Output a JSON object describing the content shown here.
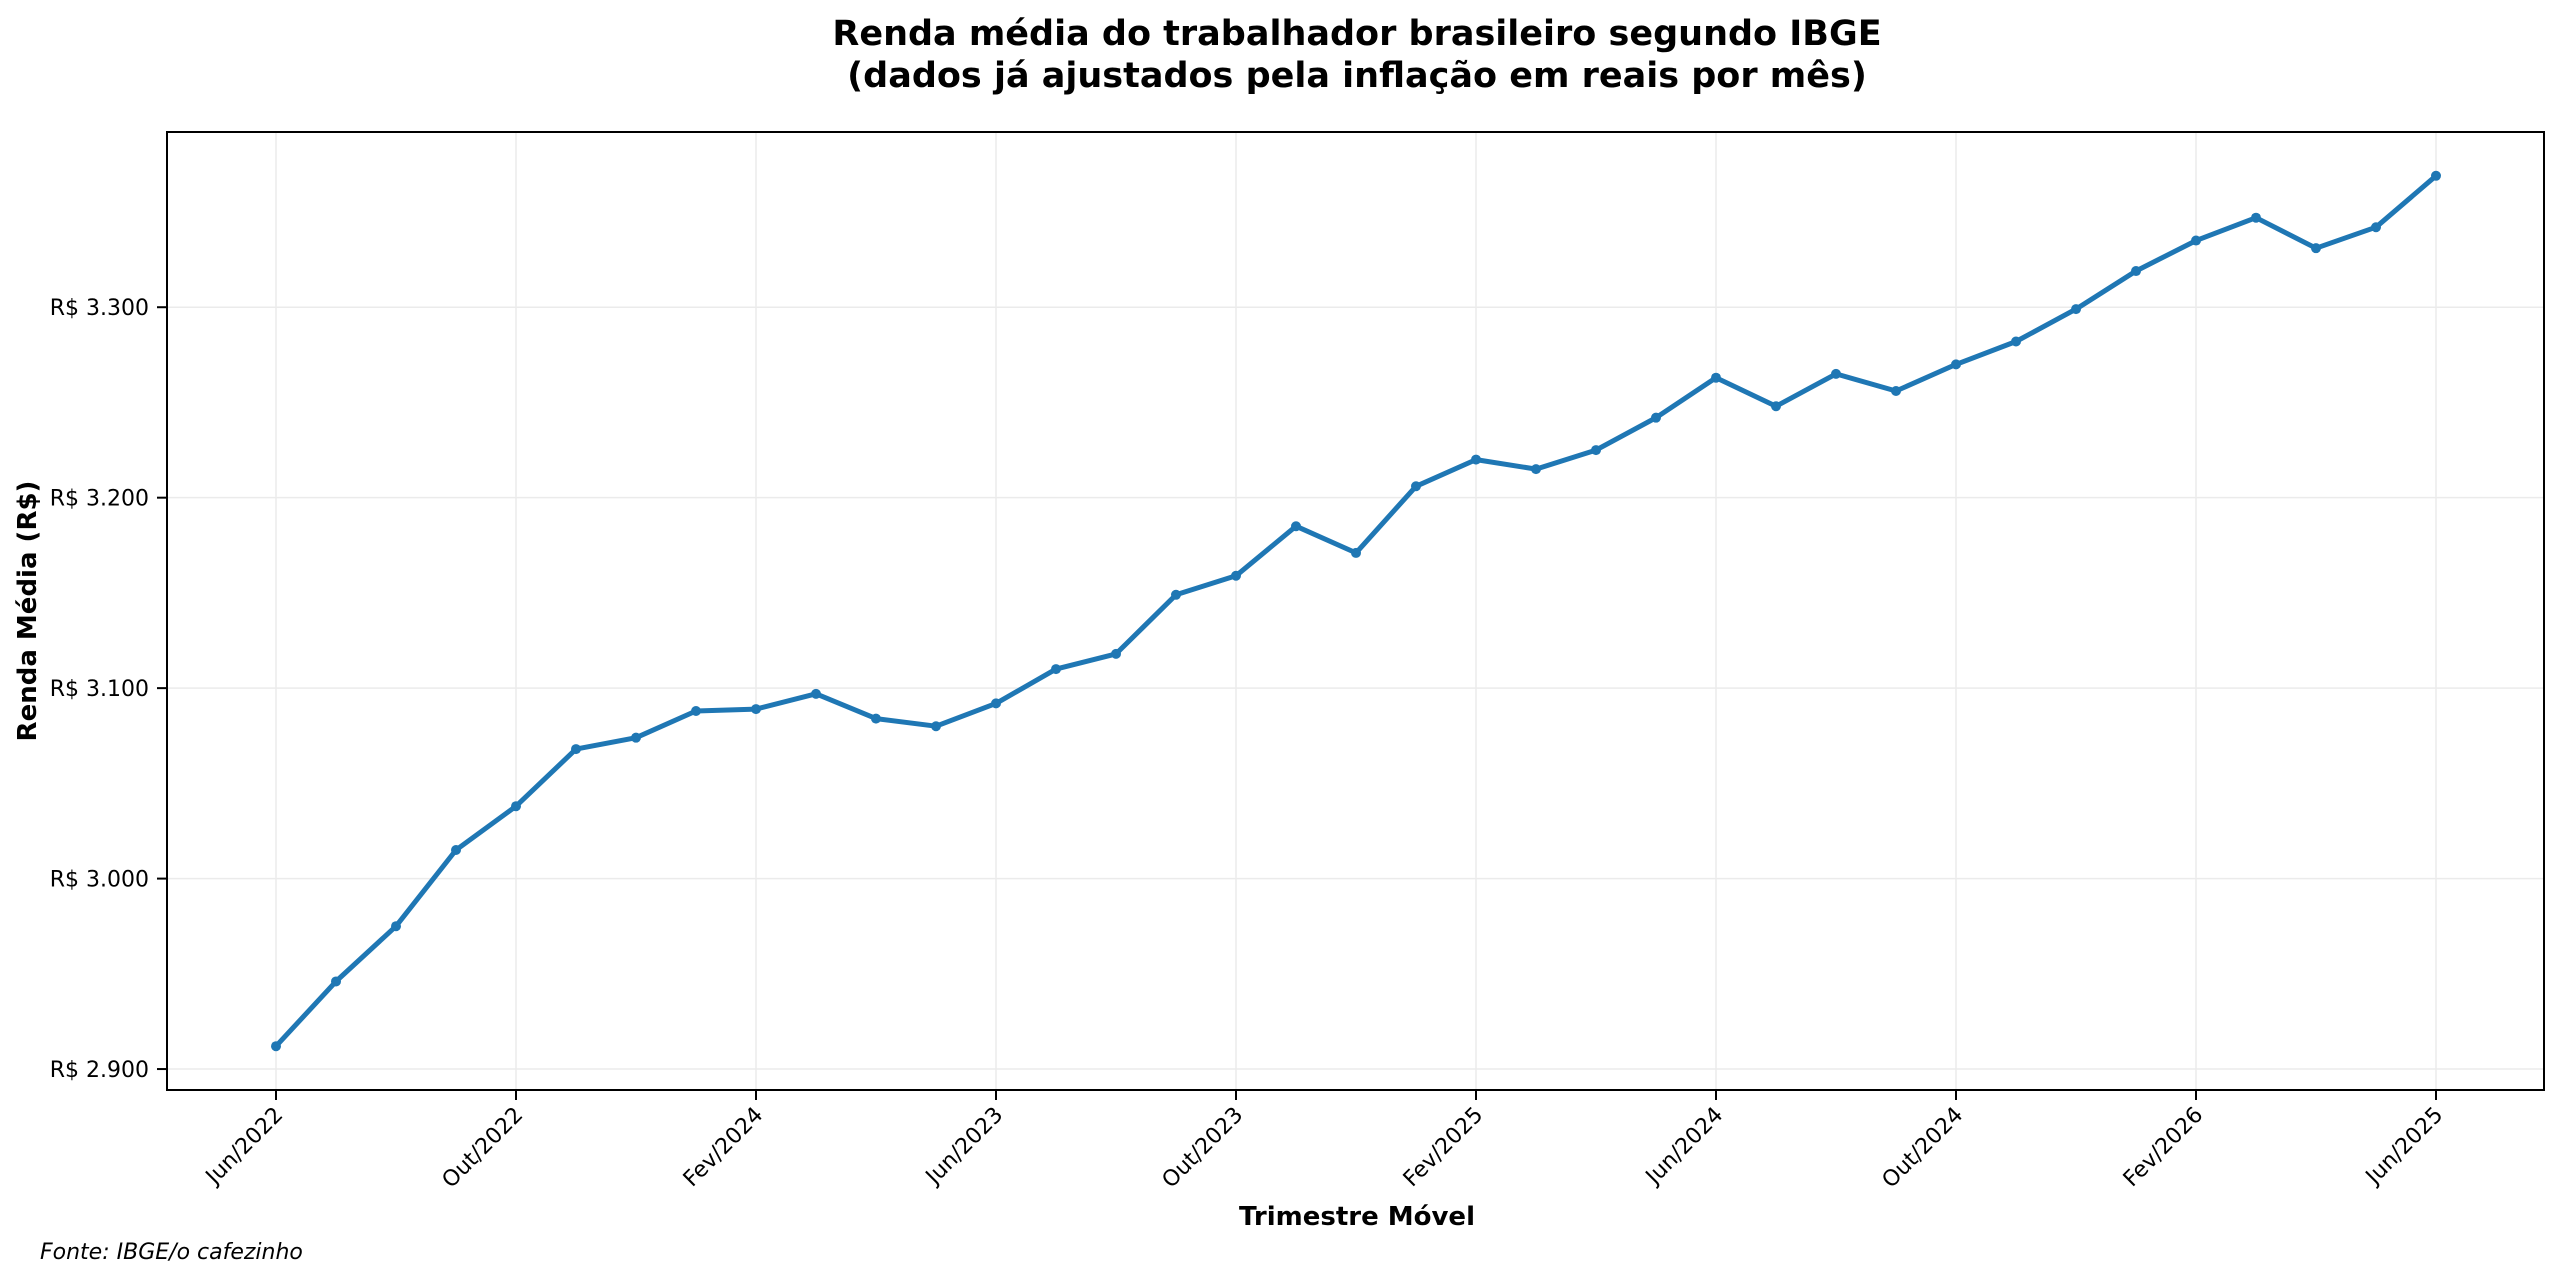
{
  "chart_data": {
    "type": "line",
    "title": "Renda média do trabalhador brasileiro segundo IBGE",
    "subtitle": "(dados já ajustados pela inflação em reais por mês)",
    "xlabel": "Trimestre Móvel",
    "ylabel": "Renda Média (R$)",
    "source": "Fonte: IBGE/o cafezinho",
    "x_tick_labels": [
      "Jun/2022",
      "Out/2022",
      "Fev/2024",
      "Jun/2023",
      "Out/2023",
      "Fev/2025",
      "Jun/2024",
      "Out/2024",
      "Fev/2026",
      "Jun/2025"
    ],
    "x_tick_every": 4,
    "y_ticks": [
      2900,
      3000,
      3100,
      3200,
      3300
    ],
    "y_tick_labels": [
      "R$ 2.900",
      "R$ 3.000",
      "R$ 3.100",
      "R$ 3.200",
      "R$ 3.300"
    ],
    "ylim": [
      2889,
      3392
    ],
    "grid": true,
    "line_color": "#1f77b4",
    "grid_color": "#ebebeb",
    "series": [
      {
        "values": [
          2912,
          2946,
          2975,
          3015,
          3038,
          3068,
          3074,
          3088,
          3089,
          3097,
          3084,
          3080,
          3092,
          3110,
          3118,
          3149,
          3159,
          3185,
          3171,
          3206,
          3220,
          3215,
          3225,
          3242,
          3263,
          3248,
          3265,
          3256,
          3270,
          3282,
          3299,
          3319,
          3335,
          3347,
          3331,
          3342,
          3369
        ]
      }
    ]
  }
}
